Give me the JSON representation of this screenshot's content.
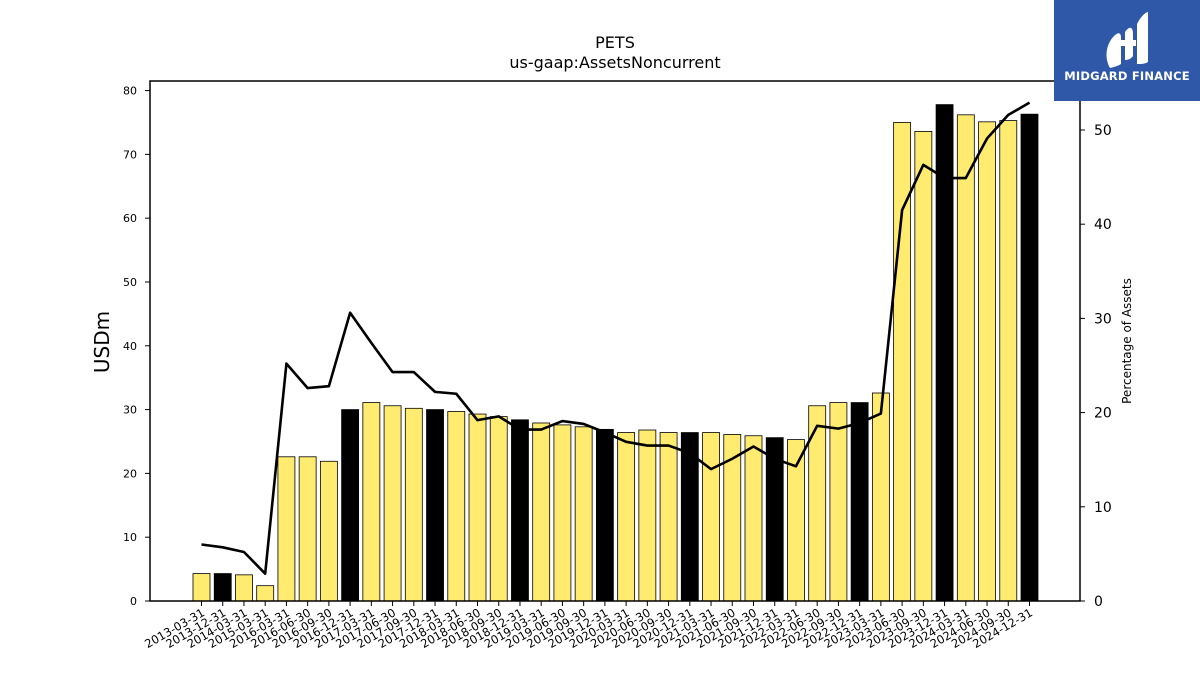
{
  "logo": {
    "text": "MIDGARD FINANCE",
    "icon": "midgard-logo-icon",
    "background": "#2f58a8"
  },
  "chart_data": {
    "type": "bar",
    "title": "PETS",
    "subtitle": "us-gaap:AssetsNoncurrent",
    "ylabel": "USDm",
    "y2label": "Percentage of Assets",
    "ylim": [
      0,
      81.5
    ],
    "y2lim": [
      0,
      55.2
    ],
    "yticks": [
      0,
      10,
      20,
      30,
      40,
      50,
      60,
      70,
      80
    ],
    "y2ticks": [
      0,
      10,
      20,
      30,
      40,
      50
    ],
    "grid": false,
    "colors": {
      "quarter": "#ffeb70",
      "year_end": "#000000",
      "line": "#000000"
    },
    "categories": [
      "2013-03-31",
      "2013-12-31",
      "2014-03-31",
      "2015-03-31",
      "2016-03-31",
      "2016-06-30",
      "2016-09-30",
      "2016-12-31",
      "2017-03-31",
      "2017-06-30",
      "2017-09-30",
      "2017-12-31",
      "2018-03-31",
      "2018-06-30",
      "2018-09-30",
      "2018-12-31",
      "2019-03-31",
      "2019-06-30",
      "2019-09-30",
      "2019-12-31",
      "2020-03-31",
      "2020-06-30",
      "2020-09-30",
      "2020-12-31",
      "2021-03-31",
      "2021-06-30",
      "2021-09-30",
      "2021-12-31",
      "2022-03-31",
      "2022-06-30",
      "2022-09-30",
      "2022-12-31",
      "2023-03-31",
      "2023-06-30",
      "2023-09-30",
      "2023-12-31",
      "2024-03-31",
      "2024-06-30",
      "2024-09-30",
      "2024-12-31"
    ],
    "series": [
      {
        "values": [
          4.3,
          4.3,
          4.1,
          2.4,
          22.6,
          22.6,
          21.9,
          30.0,
          31.1,
          30.6,
          30.2,
          30.0,
          29.7,
          29.3,
          28.9,
          28.4,
          27.9,
          27.6,
          27.3,
          26.9,
          26.4,
          26.8,
          26.4,
          26.4,
          26.4,
          26.1,
          25.9,
          25.6,
          25.3,
          30.6,
          31.1,
          31.1,
          32.6,
          75.0,
          73.6,
          77.8,
          76.2,
          75.1,
          75.3,
          76.3
        ]
      },
      {
        "values": [
          6.0,
          5.7,
          5.2,
          2.9,
          25.2,
          22.6,
          22.8,
          30.6,
          27.4,
          24.3,
          24.3,
          22.2,
          22.0,
          19.2,
          19.6,
          18.2,
          18.2,
          19.1,
          18.8,
          17.9,
          16.9,
          16.5,
          16.5,
          15.7,
          14.0,
          15.1,
          16.4,
          15.1,
          14.3,
          18.6,
          18.3,
          18.9,
          19.9,
          41.5,
          46.3,
          44.9,
          44.9,
          49.1,
          51.6,
          52.9
        ]
      }
    ],
    "year_end_indices": [
      1,
      7,
      11,
      15,
      19,
      23,
      27,
      31,
      35,
      39
    ]
  }
}
